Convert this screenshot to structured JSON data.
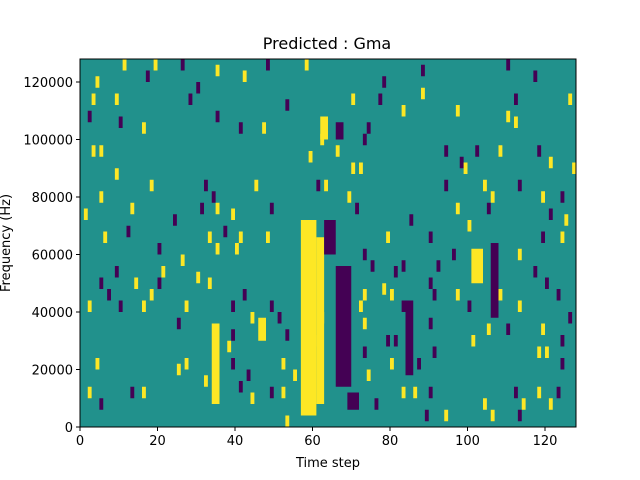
{
  "chart_data": {
    "type": "heatmap",
    "title": "Predicted : Gma",
    "xlabel": "Time step",
    "ylabel": "Frequency (Hz)",
    "xlim": [
      0,
      128
    ],
    "ylim": [
      0,
      128000
    ],
    "x_ticks": [
      0,
      20,
      40,
      60,
      80,
      100,
      120
    ],
    "y_ticks": [
      0,
      20000,
      40000,
      60000,
      80000,
      100000,
      120000
    ],
    "y_tick_labels": [
      "0",
      "20000",
      "40000",
      "60000",
      "80000",
      "100000",
      "120000"
    ],
    "n_time_steps": 128,
    "n_freq_bins": 64,
    "background_value": 0,
    "value_colors": {
      "-1": "#440154",
      "0": "#21918c",
      "1": "#fde725"
    },
    "grid": false,
    "regions": [
      {
        "x": [
          57,
          61
        ],
        "y": [
          4000,
          72000
        ],
        "value": 1
      },
      {
        "x": [
          61,
          63
        ],
        "y": [
          8000,
          66000
        ],
        "value": 1
      },
      {
        "x": [
          66,
          70
        ],
        "y": [
          14000,
          56000
        ],
        "value": -1
      },
      {
        "x": [
          63,
          66
        ],
        "y": [
          60000,
          72000
        ],
        "value": -1
      },
      {
        "x": [
          62,
          64
        ],
        "y": [
          100000,
          108000
        ],
        "value": 1
      },
      {
        "x": [
          66,
          68
        ],
        "y": [
          100000,
          106000
        ],
        "value": -1
      },
      {
        "x": [
          34,
          36
        ],
        "y": [
          8000,
          36000
        ],
        "value": 1
      },
      {
        "x": [
          101,
          104
        ],
        "y": [
          50000,
          62000
        ],
        "value": 1
      },
      {
        "x": [
          106,
          108
        ],
        "y": [
          38000,
          64000
        ],
        "value": -1
      },
      {
        "x": [
          84,
          86
        ],
        "y": [
          18000,
          44000
        ],
        "value": -1
      },
      {
        "x": [
          46,
          48
        ],
        "y": [
          30000,
          38000
        ],
        "value": 1
      },
      {
        "x": [
          69,
          72
        ],
        "y": [
          6000,
          12000
        ],
        "value": -1
      }
    ],
    "cells": [
      {
        "x": 11,
        "y": 124000,
        "v": 1
      },
      {
        "x": 19,
        "y": 124000,
        "v": 1
      },
      {
        "x": 26,
        "y": 124000,
        "v": -1
      },
      {
        "x": 35,
        "y": 122000,
        "v": 1
      },
      {
        "x": 48,
        "y": 124000,
        "v": -1
      },
      {
        "x": 58,
        "y": 124000,
        "v": 1
      },
      {
        "x": 88,
        "y": 122000,
        "v": -1
      },
      {
        "x": 110,
        "y": 124000,
        "v": -1
      },
      {
        "x": 117,
        "y": 120000,
        "v": -1
      },
      {
        "x": 17,
        "y": 120000,
        "v": -1
      },
      {
        "x": 4,
        "y": 118000,
        "v": 1
      },
      {
        "x": 30,
        "y": 116000,
        "v": -1
      },
      {
        "x": 42,
        "y": 120000,
        "v": 1
      },
      {
        "x": 78,
        "y": 118000,
        "v": -1
      },
      {
        "x": 88,
        "y": 114000,
        "v": 1
      },
      {
        "x": 3,
        "y": 112000,
        "v": 1
      },
      {
        "x": 9,
        "y": 112000,
        "v": 1
      },
      {
        "x": 28,
        "y": 112000,
        "v": -1
      },
      {
        "x": 70,
        "y": 112000,
        "v": 1
      },
      {
        "x": 77,
        "y": 112000,
        "v": -1
      },
      {
        "x": 112,
        "y": 112000,
        "v": -1
      },
      {
        "x": 126,
        "y": 112000,
        "v": 1
      },
      {
        "x": 53,
        "y": 110000,
        "v": -1
      },
      {
        "x": 83,
        "y": 108000,
        "v": 1
      },
      {
        "x": 97,
        "y": 108000,
        "v": 1
      },
      {
        "x": 2,
        "y": 106000,
        "v": -1
      },
      {
        "x": 35,
        "y": 106000,
        "v": -1
      },
      {
        "x": 110,
        "y": 106000,
        "v": 1
      },
      {
        "x": 112,
        "y": 104000,
        "v": 1
      },
      {
        "x": 10,
        "y": 104000,
        "v": -1
      },
      {
        "x": 16,
        "y": 102000,
        "v": 1
      },
      {
        "x": 41,
        "y": 102000,
        "v": -1
      },
      {
        "x": 47,
        "y": 102000,
        "v": 1
      },
      {
        "x": 74,
        "y": 102000,
        "v": -1
      },
      {
        "x": 128,
        "y": 102000,
        "v": -1
      },
      {
        "x": 62,
        "y": 98000,
        "v": 1
      },
      {
        "x": 73,
        "y": 98000,
        "v": -1
      },
      {
        "x": 3,
        "y": 94000,
        "v": 1
      },
      {
        "x": 5,
        "y": 94000,
        "v": 1
      },
      {
        "x": 66,
        "y": 94000,
        "v": 1
      },
      {
        "x": 94,
        "y": 94000,
        "v": -1
      },
      {
        "x": 102,
        "y": 94000,
        "v": -1
      },
      {
        "x": 108,
        "y": 94000,
        "v": 1
      },
      {
        "x": 118,
        "y": 94000,
        "v": -1
      },
      {
        "x": 59,
        "y": 92000,
        "v": 1
      },
      {
        "x": 98,
        "y": 90000,
        "v": -1
      },
      {
        "x": 121,
        "y": 90000,
        "v": 1
      },
      {
        "x": 9,
        "y": 86000,
        "v": 1
      },
      {
        "x": 70,
        "y": 88000,
        "v": 1
      },
      {
        "x": 72,
        "y": 88000,
        "v": 1
      },
      {
        "x": 99,
        "y": 88000,
        "v": 1
      },
      {
        "x": 127,
        "y": 88000,
        "v": 1
      },
      {
        "x": 18,
        "y": 82000,
        "v": 1
      },
      {
        "x": 32,
        "y": 82000,
        "v": -1
      },
      {
        "x": 45,
        "y": 82000,
        "v": 1
      },
      {
        "x": 61,
        "y": 82000,
        "v": -1
      },
      {
        "x": 63,
        "y": 82000,
        "v": 1
      },
      {
        "x": 94,
        "y": 82000,
        "v": -1
      },
      {
        "x": 104,
        "y": 82000,
        "v": 1
      },
      {
        "x": 113,
        "y": 82000,
        "v": -1
      },
      {
        "x": 5,
        "y": 78000,
        "v": 1
      },
      {
        "x": 34,
        "y": 78000,
        "v": -1
      },
      {
        "x": 69,
        "y": 78000,
        "v": 1
      },
      {
        "x": 106,
        "y": 78000,
        "v": 1
      },
      {
        "x": 119,
        "y": 78000,
        "v": 1
      },
      {
        "x": 124,
        "y": 78000,
        "v": -1
      },
      {
        "x": 1,
        "y": 72000,
        "v": 1
      },
      {
        "x": 13,
        "y": 74000,
        "v": 1
      },
      {
        "x": 31,
        "y": 74000,
        "v": -1
      },
      {
        "x": 35,
        "y": 74000,
        "v": 1
      },
      {
        "x": 49,
        "y": 74000,
        "v": -1
      },
      {
        "x": 71,
        "y": 74000,
        "v": -1
      },
      {
        "x": 97,
        "y": 74000,
        "v": 1
      },
      {
        "x": 105,
        "y": 74000,
        "v": -1
      },
      {
        "x": 121,
        "y": 72000,
        "v": -1
      },
      {
        "x": 24,
        "y": 70000,
        "v": -1
      },
      {
        "x": 39,
        "y": 72000,
        "v": 1
      },
      {
        "x": 85,
        "y": 70000,
        "v": -1
      },
      {
        "x": 100,
        "y": 68000,
        "v": 1
      },
      {
        "x": 125,
        "y": 70000,
        "v": 1
      },
      {
        "x": 6,
        "y": 64000,
        "v": 1
      },
      {
        "x": 12,
        "y": 66000,
        "v": -1
      },
      {
        "x": 33,
        "y": 64000,
        "v": 1
      },
      {
        "x": 37,
        "y": 66000,
        "v": -1
      },
      {
        "x": 41,
        "y": 64000,
        "v": 1
      },
      {
        "x": 48,
        "y": 64000,
        "v": 1
      },
      {
        "x": 79,
        "y": 64000,
        "v": 1
      },
      {
        "x": 90,
        "y": 64000,
        "v": -1
      },
      {
        "x": 119,
        "y": 64000,
        "v": -1
      },
      {
        "x": 124,
        "y": 64000,
        "v": 1
      },
      {
        "x": 20,
        "y": 60000,
        "v": -1
      },
      {
        "x": 35,
        "y": 60000,
        "v": 1
      },
      {
        "x": 40,
        "y": 60000,
        "v": 1
      },
      {
        "x": 73,
        "y": 58000,
        "v": -1
      },
      {
        "x": 96,
        "y": 58000,
        "v": -1
      },
      {
        "x": 113,
        "y": 58000,
        "v": 1
      },
      {
        "x": 26,
        "y": 56000,
        "v": 1
      },
      {
        "x": 75,
        "y": 54000,
        "v": -1
      },
      {
        "x": 83,
        "y": 54000,
        "v": -1
      },
      {
        "x": 92,
        "y": 54000,
        "v": -1
      },
      {
        "x": 9,
        "y": 52000,
        "v": -1
      },
      {
        "x": 21,
        "y": 52000,
        "v": 1
      },
      {
        "x": 30,
        "y": 50000,
        "v": 1
      },
      {
        "x": 81,
        "y": 52000,
        "v": -1
      },
      {
        "x": 117,
        "y": 52000,
        "v": -1
      },
      {
        "x": 5,
        "y": 48000,
        "v": -1
      },
      {
        "x": 14,
        "y": 48000,
        "v": 1
      },
      {
        "x": 20,
        "y": 48000,
        "v": -1
      },
      {
        "x": 33,
        "y": 48000,
        "v": 1
      },
      {
        "x": 78,
        "y": 46000,
        "v": 1
      },
      {
        "x": 90,
        "y": 48000,
        "v": -1
      },
      {
        "x": 120,
        "y": 48000,
        "v": -1
      },
      {
        "x": 7,
        "y": 44000,
        "v": -1
      },
      {
        "x": 18,
        "y": 44000,
        "v": 1
      },
      {
        "x": 42,
        "y": 44000,
        "v": -1
      },
      {
        "x": 73,
        "y": 44000,
        "v": 1
      },
      {
        "x": 80,
        "y": 44000,
        "v": 1
      },
      {
        "x": 91,
        "y": 44000,
        "v": -1
      },
      {
        "x": 97,
        "y": 44000,
        "v": 1
      },
      {
        "x": 108,
        "y": 44000,
        "v": 1
      },
      {
        "x": 123,
        "y": 44000,
        "v": -1
      },
      {
        "x": 2,
        "y": 40000,
        "v": 1
      },
      {
        "x": 10,
        "y": 40000,
        "v": -1
      },
      {
        "x": 16,
        "y": 40000,
        "v": 1
      },
      {
        "x": 27,
        "y": 40000,
        "v": 1
      },
      {
        "x": 39,
        "y": 40000,
        "v": -1
      },
      {
        "x": 49,
        "y": 40000,
        "v": -1
      },
      {
        "x": 72,
        "y": 40000,
        "v": 1
      },
      {
        "x": 83,
        "y": 40000,
        "v": -1
      },
      {
        "x": 100,
        "y": 40000,
        "v": -1
      },
      {
        "x": 113,
        "y": 40000,
        "v": 1
      },
      {
        "x": 126,
        "y": 36000,
        "v": -1
      },
      {
        "x": 25,
        "y": 34000,
        "v": -1
      },
      {
        "x": 44,
        "y": 36000,
        "v": 1
      },
      {
        "x": 51,
        "y": 36000,
        "v": -1
      },
      {
        "x": 62,
        "y": 36000,
        "v": 1
      },
      {
        "x": 73,
        "y": 34000,
        "v": 1
      },
      {
        "x": 90,
        "y": 34000,
        "v": -1
      },
      {
        "x": 105,
        "y": 32000,
        "v": 1
      },
      {
        "x": 110,
        "y": 32000,
        "v": -1
      },
      {
        "x": 119,
        "y": 32000,
        "v": 1
      },
      {
        "x": 39,
        "y": 30000,
        "v": -1
      },
      {
        "x": 53,
        "y": 30000,
        "v": -1
      },
      {
        "x": 61,
        "y": 28000,
        "v": 1
      },
      {
        "x": 79,
        "y": 28000,
        "v": -1
      },
      {
        "x": 81,
        "y": 28000,
        "v": -1
      },
      {
        "x": 101,
        "y": 28000,
        "v": 1
      },
      {
        "x": 124,
        "y": 28000,
        "v": -1
      },
      {
        "x": 38,
        "y": 26000,
        "v": 1
      },
      {
        "x": 73,
        "y": 24000,
        "v": -1
      },
      {
        "x": 91,
        "y": 24000,
        "v": -1
      },
      {
        "x": 120,
        "y": 24000,
        "v": 1
      },
      {
        "x": 118,
        "y": 24000,
        "v": 1
      },
      {
        "x": 4,
        "y": 20000,
        "v": 1
      },
      {
        "x": 27,
        "y": 20000,
        "v": 1
      },
      {
        "x": 39,
        "y": 20000,
        "v": -1
      },
      {
        "x": 52,
        "y": 20000,
        "v": 1
      },
      {
        "x": 80,
        "y": 20000,
        "v": 1
      },
      {
        "x": 87,
        "y": 20000,
        "v": -1
      },
      {
        "x": 124,
        "y": 20000,
        "v": -1
      },
      {
        "x": 25,
        "y": 18000,
        "v": 1
      },
      {
        "x": 43,
        "y": 16000,
        "v": -1
      },
      {
        "x": 55,
        "y": 16000,
        "v": 1
      },
      {
        "x": 74,
        "y": 16000,
        "v": 1
      },
      {
        "x": 32,
        "y": 14000,
        "v": 1
      },
      {
        "x": 2,
        "y": 10000,
        "v": 1
      },
      {
        "x": 13,
        "y": 10000,
        "v": -1
      },
      {
        "x": 16,
        "y": 10000,
        "v": 1
      },
      {
        "x": 41,
        "y": 12000,
        "v": -1
      },
      {
        "x": 49,
        "y": 10000,
        "v": -1
      },
      {
        "x": 52,
        "y": 10000,
        "v": 1
      },
      {
        "x": 83,
        "y": 10000,
        "v": 1
      },
      {
        "x": 86,
        "y": 10000,
        "v": 1
      },
      {
        "x": 90,
        "y": 10000,
        "v": -1
      },
      {
        "x": 112,
        "y": 10000,
        "v": -1
      },
      {
        "x": 118,
        "y": 10000,
        "v": 1
      },
      {
        "x": 123,
        "y": 10000,
        "v": -1
      },
      {
        "x": 5,
        "y": 6000,
        "v": -1
      },
      {
        "x": 44,
        "y": 8000,
        "v": 1
      },
      {
        "x": 76,
        "y": 6000,
        "v": -1
      },
      {
        "x": 104,
        "y": 6000,
        "v": 1
      },
      {
        "x": 114,
        "y": 6000,
        "v": 1
      },
      {
        "x": 121,
        "y": 6000,
        "v": 1
      },
      {
        "x": 89,
        "y": 2000,
        "v": -1
      },
      {
        "x": 94,
        "y": 2000,
        "v": 1
      },
      {
        "x": 106,
        "y": 2000,
        "v": 1
      },
      {
        "x": 113,
        "y": 2000,
        "v": -1
      },
      {
        "x": 53,
        "y": 0,
        "v": 1
      }
    ]
  }
}
